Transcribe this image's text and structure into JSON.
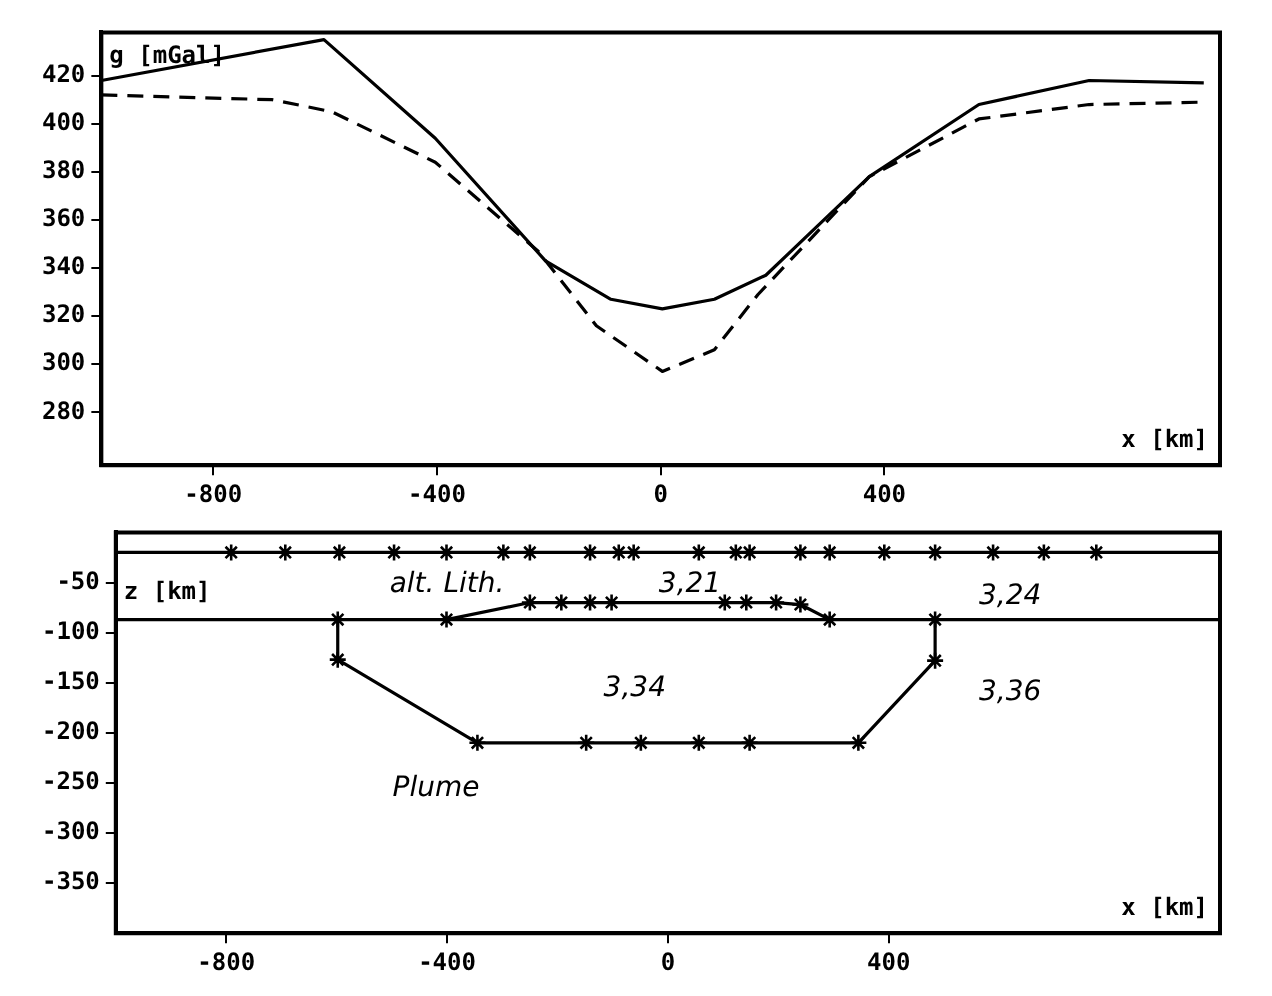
{
  "chart_data": [
    {
      "type": "line",
      "ylabel": "g [mGal]",
      "xlabel": "x [km]",
      "xlim": [
        -1000,
        1000
      ],
      "xticks": [
        -800,
        -400,
        0,
        400
      ],
      "ylim": [
        258,
        438
      ],
      "yticks": [
        280,
        300,
        320,
        340,
        360,
        380,
        400,
        420
      ],
      "grid": false,
      "legend": false,
      "marker": "none",
      "series": [
        {
          "color": "#000000",
          "line_style": "solid",
          "x": [
            -1000,
            -602,
            -403,
            -206,
            -89,
            3,
            96,
            188,
            373,
            569,
            766,
            971
          ],
          "values": [
            418,
            435,
            394,
            343,
            327,
            323,
            327,
            337,
            378,
            408,
            418,
            417
          ]
        },
        {
          "color": "#000000",
          "line_style": "dashed",
          "x": [
            -1000,
            -694,
            -588,
            -403,
            -219,
            -115,
            3,
            96,
            174,
            373,
            569,
            766,
            971
          ],
          "values": [
            412,
            410,
            405,
            384,
            347,
            316,
            297,
            306,
            329,
            378,
            402,
            408,
            409
          ]
        }
      ]
    },
    {
      "type": "line",
      "ylabel": "z [km]",
      "xlabel": "x [km]",
      "xlim": [
        -1000,
        1000
      ],
      "xticks": [
        -800,
        -400,
        0,
        400
      ],
      "ylim": [
        -400,
        0
      ],
      "yticks": [
        -50,
        -100,
        -150,
        -200,
        -250,
        -300,
        -350
      ],
      "grid": false,
      "legend": false,
      "marker": "cross",
      "ref_lines": [
        {
          "axis": "y",
          "value": -87,
          "color": "#000000"
        },
        {
          "axis": "y",
          "value": -20,
          "color": "#000000"
        }
      ],
      "annotations": [
        "alt. Lith.",
        "3,21",
        "3,24",
        "3,34",
        "3,36",
        "Plume"
      ],
      "series": [
        {
          "type": "scatter",
          "color": "#000000",
          "x": [
            -791,
            -693,
            -595,
            -496,
            -401,
            -298,
            -250,
            -141,
            -89,
            -62,
            56,
            123,
            148,
            240,
            293,
            392,
            484,
            589,
            681,
            776
          ],
          "values": [
            -20,
            -20,
            -20,
            -20,
            -20,
            -20,
            -20,
            -20,
            -20,
            -20,
            -20,
            -20,
            -20,
            -20,
            -20,
            -20,
            -20,
            -20,
            -20,
            -20
          ]
        },
        {
          "color": "#000000",
          "x": [
            -401,
            -250,
            -193,
            -141,
            -102,
            103,
            142,
            196,
            240,
            293
          ],
          "values": [
            -87,
            -70,
            -70,
            -70,
            -70,
            -70,
            -70,
            -70,
            -72,
            -87
          ]
        },
        {
          "color": "#000000",
          "x": [
            -598,
            -598,
            -345,
            -148,
            -49,
            56,
            148,
            345,
            484,
            484
          ],
          "values": [
            -87,
            -127,
            -210,
            -210,
            -210,
            -210,
            -210,
            -210,
            -128,
            -87
          ]
        }
      ]
    }
  ]
}
